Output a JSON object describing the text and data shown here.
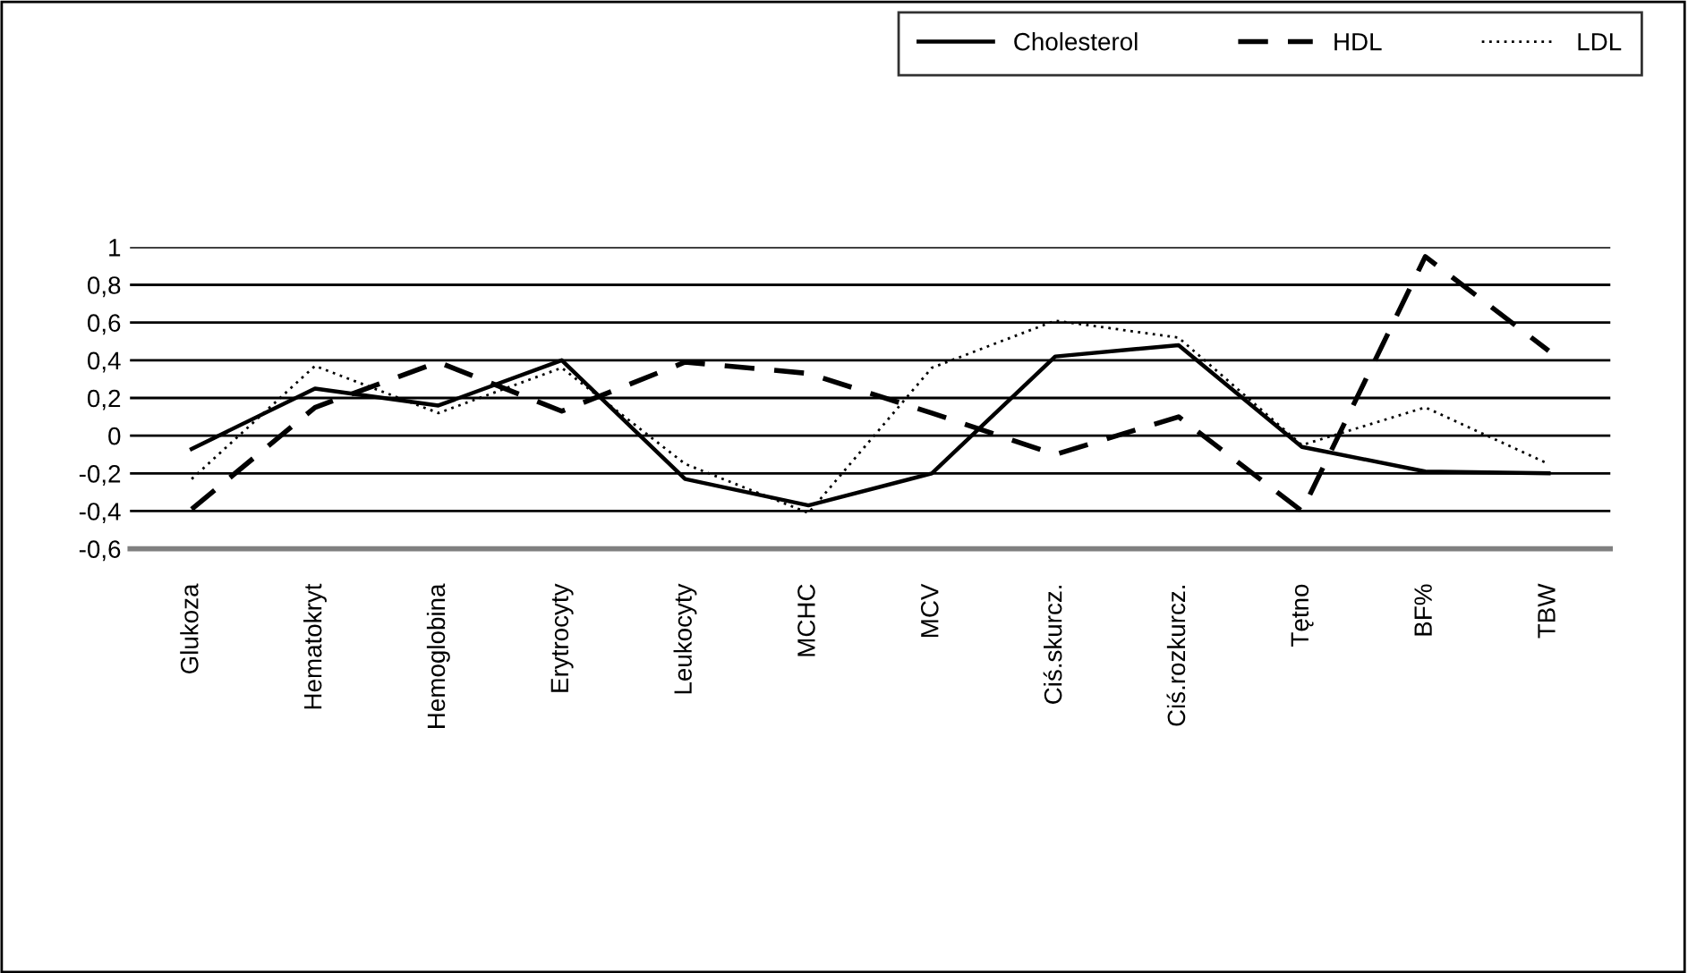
{
  "chart_data": {
    "type": "line",
    "categories": [
      "Glukoza",
      "Hematokryt",
      "Hemoglobina",
      "Erytrocyty",
      "Leukocyty",
      "MCHC",
      "MCV",
      "Ciś.skurcz.",
      "Ciś.rozkurcz.",
      "Tętno",
      "BF%",
      "TBW"
    ],
    "series": [
      {
        "name": "Cholesterol",
        "color": "#000000",
        "line_style": "solid",
        "values": [
          -0.07,
          0.25,
          0.16,
          0.4,
          -0.23,
          -0.37,
          -0.2,
          0.42,
          0.48,
          -0.06,
          -0.19,
          -0.2
        ]
      },
      {
        "name": "HDL",
        "color": "#000000",
        "line_style": "dashed",
        "values": [
          -0.39,
          0.15,
          0.39,
          0.13,
          0.39,
          0.33,
          0.12,
          -0.1,
          0.1,
          -0.4,
          0.95,
          0.45
        ]
      },
      {
        "name": "LDL",
        "color": "#000000",
        "line_style": "dotted",
        "values": [
          -0.23,
          0.37,
          0.12,
          0.36,
          -0.15,
          -0.41,
          0.36,
          0.61,
          0.52,
          -0.05,
          0.15,
          -0.15
        ]
      }
    ],
    "ylim": [
      -0.6,
      1
    ],
    "yticks": [
      {
        "value": -0.6,
        "label": "-0,6"
      },
      {
        "value": -0.4,
        "label": "-0,4"
      },
      {
        "value": -0.2,
        "label": "-0,2"
      },
      {
        "value": 0,
        "label": "0"
      },
      {
        "value": 0.2,
        "label": "0,2"
      },
      {
        "value": 0.4,
        "label": "0,4"
      },
      {
        "value": 0.6,
        "label": "0,6"
      },
      {
        "value": 0.8,
        "label": "0,8"
      },
      {
        "value": 1,
        "label": "1"
      }
    ],
    "grid": "y",
    "legend": "top right",
    "marker": "none"
  }
}
